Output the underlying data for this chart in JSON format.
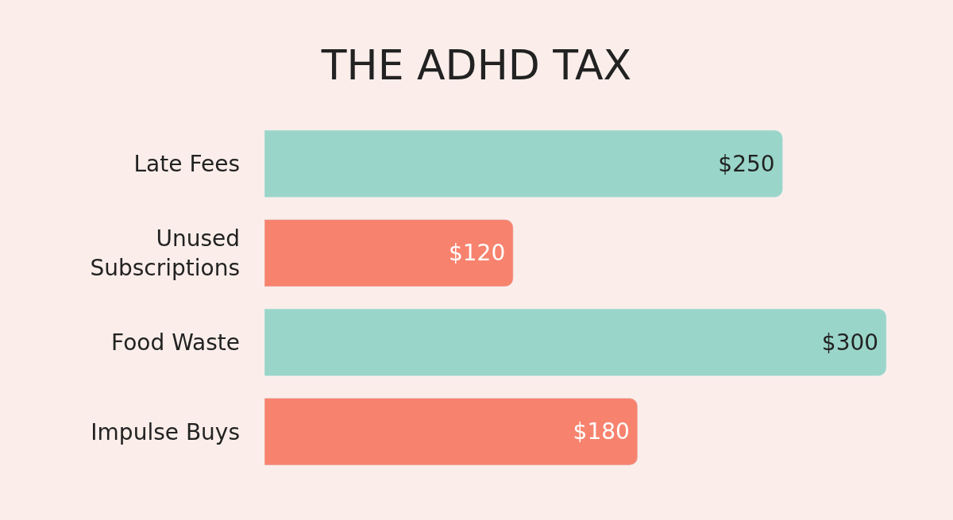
{
  "chart_data": {
    "type": "bar",
    "orientation": "horizontal",
    "title": "THE ADHD TAX",
    "categories": [
      "Late Fees",
      "Unused Subscriptions",
      "Food Waste",
      "Impulse Buys"
    ],
    "values": [
      250,
      120,
      300,
      180
    ],
    "colors": [
      "#9ad5c9",
      "#f7836e",
      "#9ad5c9",
      "#f7836e"
    ],
    "value_labels": [
      "$250",
      "$120",
      "$300",
      "$180"
    ]
  }
}
